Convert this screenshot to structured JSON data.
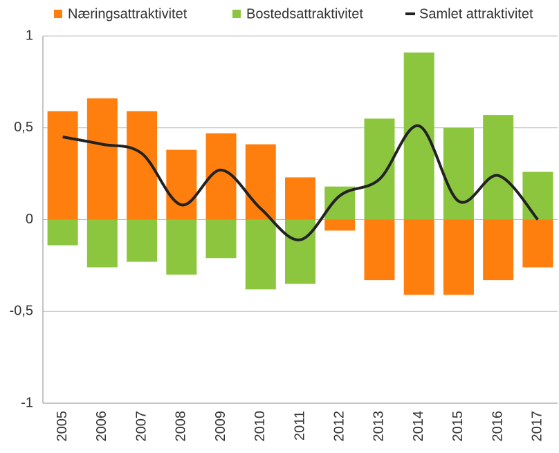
{
  "chart_data": {
    "type": "bar",
    "categories": [
      "2005",
      "2006",
      "2007",
      "2008",
      "2009",
      "2010",
      "2011",
      "2012",
      "2013",
      "2014",
      "2015",
      "2016",
      "2017"
    ],
    "series": [
      {
        "name": "Næringsattraktivitet",
        "color": "#ff7f0e",
        "type": "bar",
        "values": [
          0.59,
          0.66,
          0.59,
          0.38,
          0.47,
          0.41,
          0.23,
          -0.06,
          -0.33,
          -0.41,
          -0.41,
          -0.33,
          -0.26
        ]
      },
      {
        "name": "Bostedsattraktivitet",
        "color": "#8cc63f",
        "type": "bar",
        "values": [
          -0.14,
          -0.26,
          -0.23,
          -0.3,
          -0.21,
          -0.38,
          -0.35,
          0.18,
          0.55,
          0.91,
          0.5,
          0.57,
          0.26
        ]
      },
      {
        "name": "Samlet attraktivitet",
        "color": "#222222",
        "type": "line",
        "values": [
          0.45,
          0.41,
          0.36,
          0.08,
          0.27,
          0.06,
          -0.11,
          0.13,
          0.22,
          0.51,
          0.1,
          0.24,
          0.0
        ]
      }
    ],
    "ylim": [
      -1,
      1
    ],
    "yticks": [
      -1,
      {
        "value": -0.5,
        "label": "-0,5"
      },
      0,
      {
        "value": 0.5,
        "label": "0,5"
      },
      1
    ],
    "grid": true,
    "legend": "top"
  }
}
